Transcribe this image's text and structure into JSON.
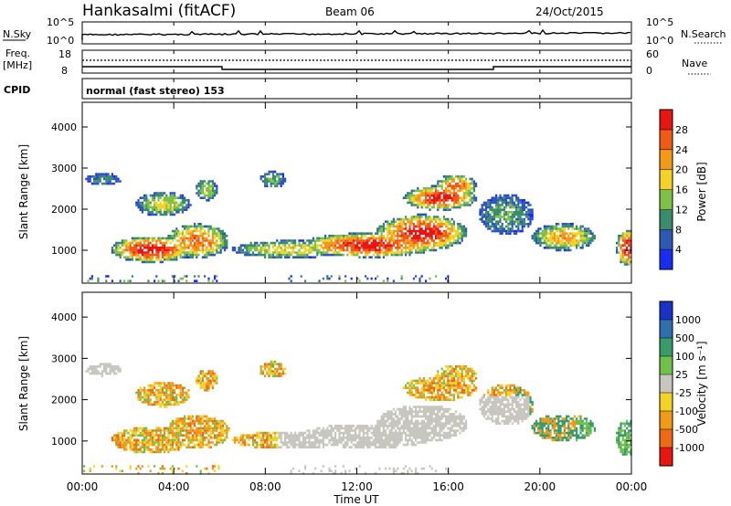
{
  "header": {
    "station": "Hankasalmi (fitACF)",
    "beam": "Beam 06",
    "date": "24/Oct/2015"
  },
  "noise_panel": {
    "left_label": "N.Sky",
    "right_label": "N.Search",
    "left_ticks": [
      "10^5",
      "10^0"
    ],
    "right_ticks": [
      "10^5",
      "10^0"
    ]
  },
  "freq_panel": {
    "left_label_line1": "Freq.",
    "left_label_line2": "[MHz]",
    "right_label": "Nave",
    "left_ticks": [
      "18",
      "8"
    ],
    "right_ticks": [
      "60",
      "0"
    ]
  },
  "cpid_panel": {
    "label": "CPID",
    "text": "normal (fast stereo) 153"
  },
  "chart_data": [
    {
      "type": "heatmap",
      "name": "power",
      "ylabel": "Slant Range [km]",
      "ylim": [
        200,
        4600
      ],
      "yticks": [
        "1000",
        "2000",
        "3000",
        "4000"
      ],
      "colorbar_label": "Power [dB]",
      "colorbar_ticks": [
        "4",
        "8",
        "12",
        "16",
        "20",
        "24",
        "28"
      ],
      "colors": [
        "#1a2cf0",
        "#2f58b5",
        "#3a8d6a",
        "#7fc146",
        "#f4d227",
        "#f29a18",
        "#ef5a14",
        "#e81510"
      ]
    },
    {
      "type": "heatmap",
      "name": "velocity",
      "ylabel": "Slant Range [km]",
      "ylim": [
        200,
        4600
      ],
      "yticks": [
        "1000",
        "2000",
        "3000",
        "4000"
      ],
      "colorbar_label": "Velocity [m s⁻¹]",
      "colorbar_ticks": [
        "1000",
        "500",
        "100",
        "25",
        "-25",
        "-100",
        "-500",
        "-1000"
      ],
      "colors": [
        "#1a33c4",
        "#2f6fb0",
        "#3a9b6a",
        "#6fc248",
        "#c7c6bf",
        "#f4d227",
        "#f29a18",
        "#ef6a14",
        "#e81510"
      ]
    }
  ],
  "x_axis": {
    "label": "Time UT",
    "ticks": [
      "00:00",
      "04:00",
      "08:00",
      "12:00",
      "16:00",
      "20:00",
      "00:00"
    ]
  }
}
